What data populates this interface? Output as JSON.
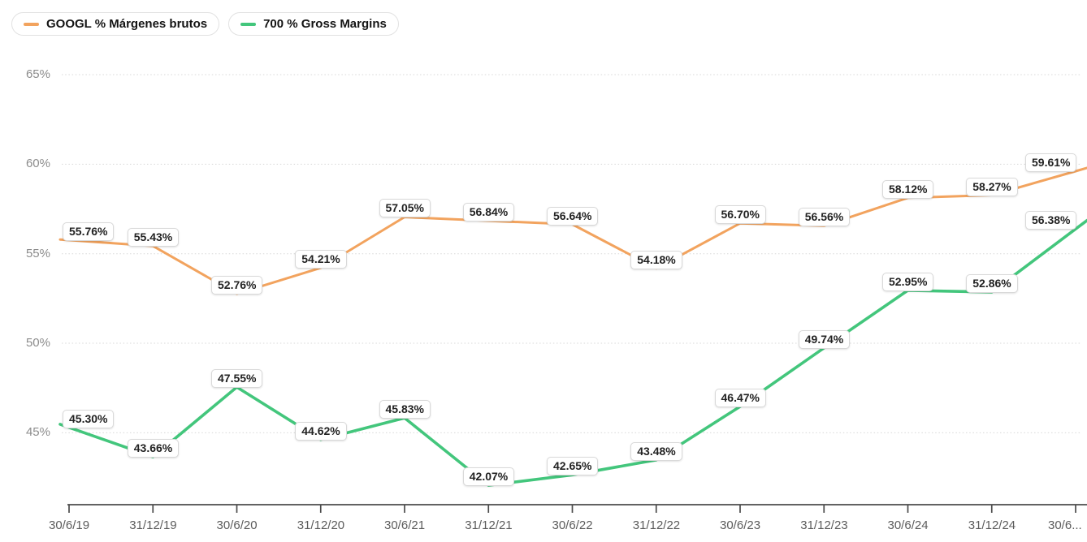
{
  "chart_data": {
    "type": "line",
    "title": "",
    "x_categories": [
      "30/6/19",
      "31/12/19",
      "30/6/20",
      "31/12/20",
      "30/6/21",
      "31/12/21",
      "30/6/22",
      "31/12/22",
      "30/6/23",
      "31/12/23",
      "30/6/24",
      "31/12/24",
      "30/6..."
    ],
    "series": [
      {
        "name": "GOOGL % Márgenes brutos",
        "color": "#f2a35e",
        "values": [
          55.76,
          55.43,
          52.76,
          54.21,
          57.05,
          56.84,
          56.64,
          54.18,
          56.7,
          56.56,
          58.12,
          58.27,
          59.61
        ],
        "labels": [
          "55.76%",
          "55.43%",
          "52.76%",
          "54.21%",
          "57.05%",
          "56.84%",
          "56.64%",
          "54.18%",
          "56.70%",
          "56.56%",
          "58.12%",
          "58.27%",
          "59.61%"
        ]
      },
      {
        "name": "700 % Gross Margins",
        "color": "#43c67c",
        "values": [
          45.3,
          43.66,
          47.55,
          44.62,
          45.83,
          42.07,
          42.65,
          43.48,
          46.47,
          49.74,
          52.95,
          52.86,
          56.38
        ],
        "labels": [
          "45.30%",
          "43.66%",
          "47.55%",
          "44.62%",
          "45.83%",
          "42.07%",
          "42.65%",
          "43.48%",
          "46.47%",
          "49.74%",
          "52.95%",
          "52.86%",
          "56.38%"
        ]
      }
    ],
    "y_ticks": [
      {
        "value": 65,
        "label": "65%"
      },
      {
        "value": 60,
        "label": "60%"
      },
      {
        "value": 55,
        "label": "55%"
      },
      {
        "value": 50,
        "label": "50%"
      },
      {
        "value": 45,
        "label": "45%"
      }
    ],
    "ylim": [
      41,
      69
    ],
    "grid": "horizontal-dotted",
    "legend_position": "top-left",
    "data_labels_visible": true,
    "axis_colors": {
      "grid": "#d8d8d8",
      "axis_line": "#4b4b4b",
      "x_tick_label": "#5c5c5c",
      "y_tick_label": "#8c8c8c"
    }
  }
}
